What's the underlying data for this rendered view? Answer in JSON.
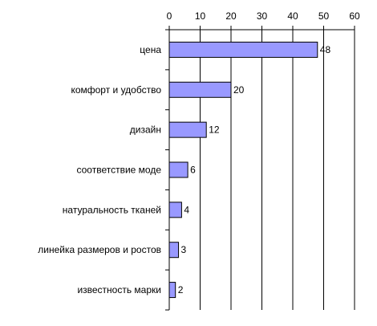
{
  "chart_data": {
    "type": "bar",
    "orientation": "horizontal",
    "categories": [
      "цена",
      "комфорт и удобство",
      "дизайн",
      "соответствие моде",
      "натуральность тканей",
      "линейка размеров и ростов",
      "известность марки"
    ],
    "values": [
      48,
      20,
      12,
      6,
      4,
      3,
      2
    ],
    "xlim": [
      0,
      60
    ],
    "x_ticks": [
      0,
      10,
      20,
      30,
      40,
      50,
      60
    ],
    "x_axis_position": "top",
    "grid": "vertical",
    "legend": "none",
    "title": "",
    "xlabel": "",
    "ylabel": "",
    "bar_color": "#9999ff",
    "bar_edge_color": "#000000"
  }
}
